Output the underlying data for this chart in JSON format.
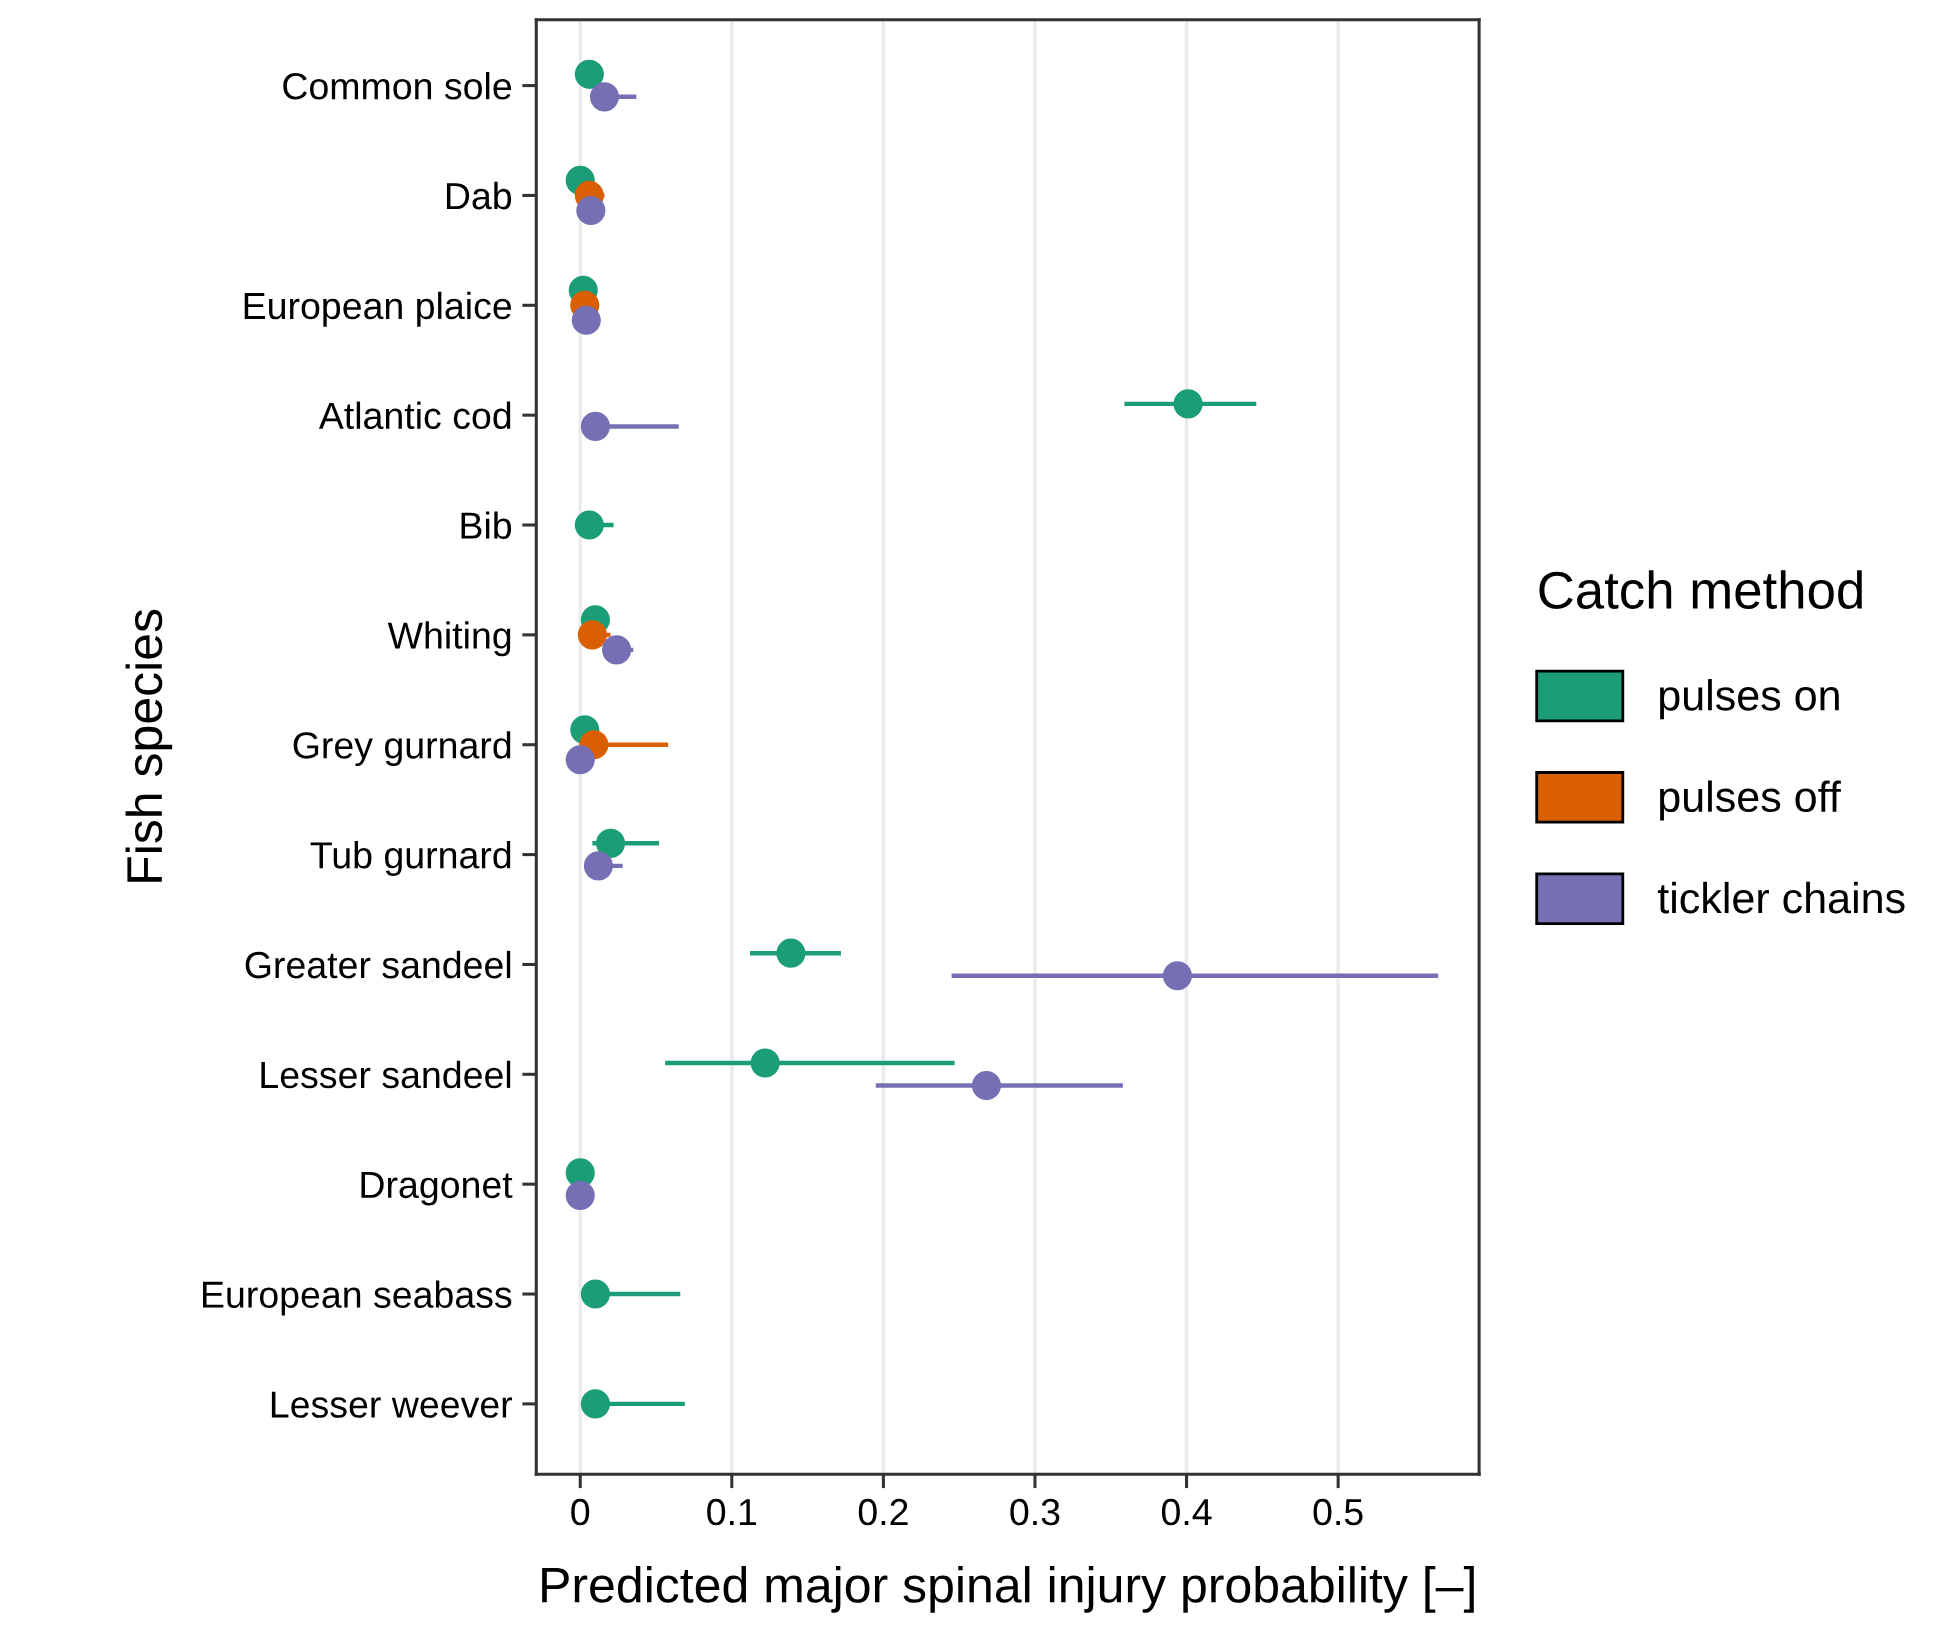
{
  "chart_data": {
    "type": "scatter",
    "orientation": "horizontal",
    "categories": [
      "Common sole",
      "Dab",
      "European plaice",
      "Atlantic cod",
      "Bib",
      "Whiting",
      "Grey gurnard",
      "Tub gurnard",
      "Greater sandeel",
      "Lesser sandeel",
      "Dragonet",
      "European seabass",
      "Lesser weever"
    ],
    "xlabel": "Predicted major spinal injury probability [–]",
    "ylabel": "Fish species",
    "legend_title": "Catch method",
    "xlim": [
      -0.029,
      0.593
    ],
    "xticks": [
      0,
      0.1,
      0.2,
      0.3,
      0.4,
      0.5
    ],
    "grid": "x",
    "legend": "right",
    "marker": "circle",
    "series": [
      {
        "name": "pulses on",
        "color": "#1b9e77",
        "values": [
          0.006,
          0.0,
          0.002,
          0.401,
          0.006,
          0.01,
          0.003,
          0.02,
          0.139,
          0.122,
          0.0,
          0.01,
          0.01
        ],
        "errors": [
          null,
          null,
          null,
          [
            0.359,
            0.446
          ],
          [
            0.006,
            0.022
          ],
          null,
          null,
          [
            0.008,
            0.052
          ],
          [
            0.112,
            0.172
          ],
          [
            0.056,
            0.247
          ],
          null,
          [
            0.01,
            0.066
          ],
          [
            0.01,
            0.069
          ]
        ]
      },
      {
        "name": "pulses off",
        "color": "#d95f02",
        "values": [
          null,
          0.006,
          0.003,
          null,
          null,
          0.008,
          0.009,
          null,
          null,
          null,
          null,
          null,
          null
        ],
        "errors": [
          null,
          [
            0.002,
            0.016
          ],
          null,
          null,
          null,
          [
            0.008,
            0.02
          ],
          [
            0.009,
            0.058
          ],
          null,
          null,
          null,
          null,
          null,
          null
        ]
      },
      {
        "name": "tickler chains",
        "color": "#7570b3",
        "values": [
          0.016,
          0.007,
          0.004,
          0.01,
          null,
          0.024,
          0.0,
          0.012,
          0.394,
          0.268,
          0.0,
          null,
          null
        ],
        "errors": [
          [
            0.016,
            0.037
          ],
          null,
          null,
          [
            0.01,
            0.065
          ],
          null,
          [
            0.024,
            0.035
          ],
          null,
          [
            0.012,
            0.028
          ],
          [
            0.245,
            0.566
          ],
          [
            0.195,
            0.358
          ],
          null,
          null,
          null
        ]
      }
    ]
  }
}
